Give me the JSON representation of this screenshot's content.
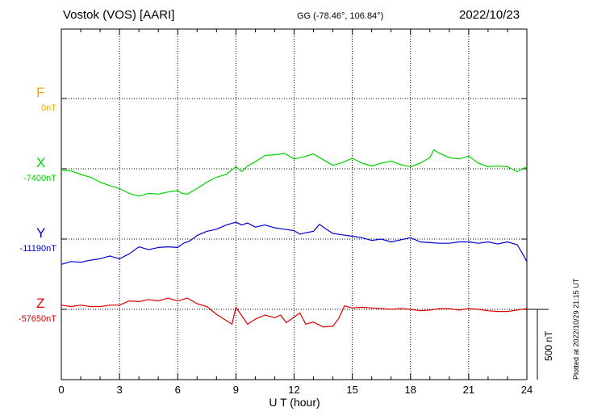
{
  "header": {
    "station": "Vostok (VOS)  [AARI]",
    "coords": "GG (-78.46°, 106.84°)",
    "date": "2022/10/23"
  },
  "footer": {
    "plotted": "Plotted at 2022/10/29 21:15 UT",
    "scale": "500 nT"
  },
  "components": [
    {
      "name": "F",
      "baseline": "0nT",
      "color": "#f5a800"
    },
    {
      "name": "X",
      "baseline": "-7400nT",
      "color": "#00d400"
    },
    {
      "name": "Y",
      "baseline": "-11190nT",
      "color": "#0000d0"
    },
    {
      "name": "Z",
      "baseline": "-57650nT",
      "color": "#e00000"
    }
  ],
  "chart_data": {
    "type": "line",
    "xlabel": "U T (hour)",
    "xlim": [
      0,
      24
    ],
    "xticks": [
      "0",
      "3",
      "6",
      "9",
      "12",
      "15",
      "18",
      "21",
      "24"
    ],
    "units": "nT",
    "series": [
      {
        "name": "X",
        "baseline_nT": -7400,
        "color": "#00d400",
        "x": [
          0,
          0.5,
          1,
          1.5,
          2,
          2.5,
          3,
          3.5,
          4,
          4.5,
          5,
          5.5,
          6,
          6.2,
          6.5,
          7,
          7.5,
          8,
          8.5,
          9,
          9.3,
          9.6,
          10,
          10.5,
          11,
          11.5,
          12,
          12.5,
          13,
          13.5,
          14,
          14.5,
          15,
          15.5,
          16,
          16.5,
          17,
          17.5,
          18,
          18.5,
          19,
          19.2,
          19.5,
          20,
          20.5,
          21,
          21.5,
          22,
          22.5,
          23,
          23.5,
          24
        ],
        "y": [
          -10,
          -15,
          -40,
          -60,
          -95,
          -120,
          -140,
          -175,
          -195,
          -175,
          -180,
          -165,
          -155,
          -175,
          -180,
          -140,
          -95,
          -60,
          -40,
          15,
          -20,
          20,
          50,
          95,
          100,
          110,
          70,
          85,
          105,
          65,
          25,
          45,
          75,
          40,
          20,
          40,
          55,
          30,
          15,
          40,
          80,
          135,
          110,
          80,
          70,
          90,
          40,
          15,
          20,
          15,
          -20,
          15
        ]
      },
      {
        "name": "Y",
        "baseline_nT": -11190,
        "color": "#0000d0",
        "x": [
          0,
          0.5,
          1,
          1.5,
          2,
          2.5,
          3,
          3.5,
          4,
          4.5,
          5,
          5.5,
          6,
          6.3,
          6.6,
          7,
          7.5,
          8,
          8.5,
          9,
          9.3,
          9.6,
          10,
          10.5,
          11,
          11.5,
          12,
          12.3,
          12.6,
          13,
          13.3,
          13.6,
          14,
          14.5,
          15,
          15.5,
          16,
          16.5,
          17,
          17.5,
          18,
          18.5,
          19,
          19.5,
          20,
          20.5,
          21,
          21.5,
          22,
          22.5,
          23,
          23.5,
          23.8,
          24
        ],
        "y": [
          -180,
          -160,
          -165,
          -150,
          -140,
          -120,
          -140,
          -105,
          -55,
          -75,
          -60,
          -55,
          -60,
          -30,
          -15,
          25,
          55,
          70,
          100,
          120,
          100,
          115,
          85,
          100,
          80,
          70,
          60,
          35,
          45,
          55,
          105,
          75,
          40,
          30,
          20,
          10,
          -10,
          0,
          -20,
          -5,
          10,
          -20,
          -25,
          -30,
          -30,
          -20,
          -20,
          -30,
          -20,
          -35,
          -20,
          -40,
          -110,
          -160
        ]
      },
      {
        "name": "Z",
        "baseline_nT": -57650,
        "color": "#e00000",
        "x": [
          0,
          0.5,
          1,
          1.5,
          2,
          2.5,
          3,
          3.5,
          4,
          4.5,
          5,
          5.5,
          6,
          6.5,
          7,
          7.5,
          8,
          8.5,
          8.8,
          9,
          9.3,
          9.6,
          10,
          10.5,
          11,
          11.3,
          11.6,
          12,
          12.3,
          12.6,
          13,
          13.5,
          14,
          14.3,
          14.6,
          15,
          15.5,
          16,
          16.5,
          17,
          17.5,
          18,
          18.5,
          19,
          19.5,
          20,
          20.5,
          21,
          21.5,
          22,
          22.5,
          23,
          23.5,
          24
        ],
        "y": [
          30,
          20,
          30,
          20,
          20,
          30,
          30,
          60,
          55,
          70,
          60,
          80,
          60,
          80,
          40,
          20,
          -35,
          -80,
          -105,
          15,
          -45,
          -105,
          -70,
          -40,
          -60,
          -40,
          -95,
          -55,
          -25,
          -105,
          -90,
          -125,
          -120,
          -65,
          25,
          10,
          15,
          10,
          5,
          0,
          5,
          0,
          -10,
          -5,
          5,
          5,
          -5,
          5,
          0,
          -10,
          -15,
          -15,
          -5,
          5
        ]
      }
    ]
  }
}
